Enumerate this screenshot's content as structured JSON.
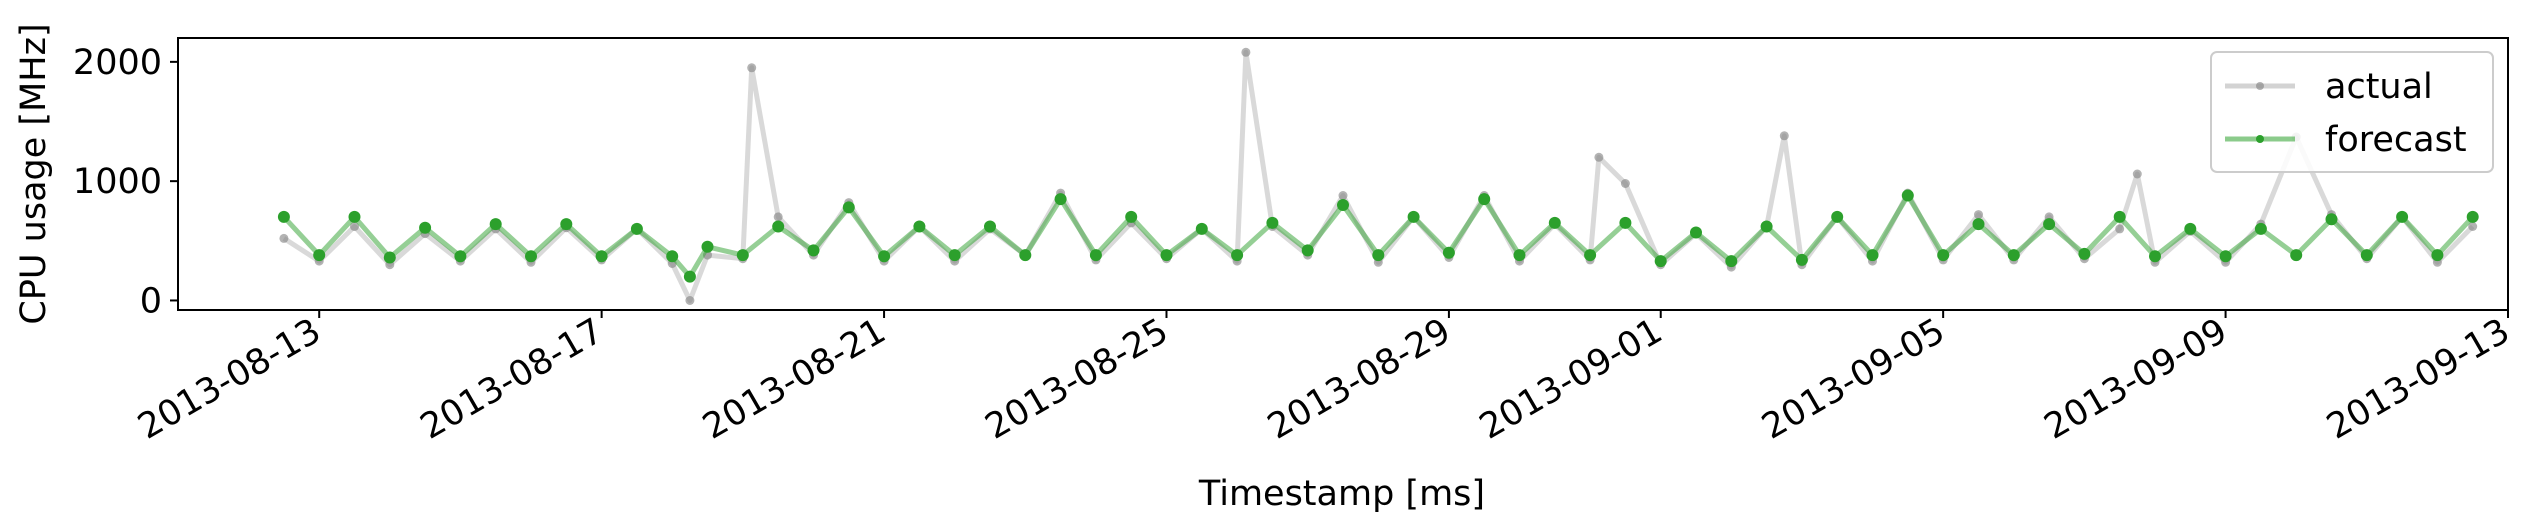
{
  "chart_data": {
    "type": "line",
    "title": "",
    "xlabel": "Timestamp [ms]",
    "ylabel": "CPU usage [MHz]",
    "xlim": [
      "2013-08-11",
      "2013-09-13"
    ],
    "ylim": [
      -80,
      2200
    ],
    "x_ticks": [
      "2013-08-13",
      "2013-08-17",
      "2013-08-21",
      "2013-08-25",
      "2013-08-29",
      "2013-09-01",
      "2013-09-05",
      "2013-09-09",
      "2013-09-13"
    ],
    "y_ticks": [
      0,
      1000,
      2000
    ],
    "legend": {
      "placement": "top-right",
      "entries": [
        "actual",
        "forecast"
      ]
    },
    "grid": false,
    "series": [
      {
        "name": "actual",
        "color": "#808080",
        "points": [
          [
            "2013-08-12 12:00",
            520
          ],
          [
            "2013-08-13 00:00",
            330
          ],
          [
            "2013-08-13 12:00",
            620
          ],
          [
            "2013-08-14 00:00",
            300
          ],
          [
            "2013-08-14 12:00",
            560
          ],
          [
            "2013-08-15 00:00",
            330
          ],
          [
            "2013-08-15 12:00",
            600
          ],
          [
            "2013-08-16 00:00",
            320
          ],
          [
            "2013-08-16 12:00",
            610
          ],
          [
            "2013-08-17 00:00",
            340
          ],
          [
            "2013-08-17 12:00",
            600
          ],
          [
            "2013-08-18 00:00",
            310
          ],
          [
            "2013-08-18 06:00",
            0
          ],
          [
            "2013-08-18 12:00",
            380
          ],
          [
            "2013-08-19 00:00",
            350
          ],
          [
            "2013-08-19 03:00",
            1950
          ],
          [
            "2013-08-19 12:00",
            700
          ],
          [
            "2013-08-20 00:00",
            380
          ],
          [
            "2013-08-20 12:00",
            820
          ],
          [
            "2013-08-21 00:00",
            330
          ],
          [
            "2013-08-21 12:00",
            620
          ],
          [
            "2013-08-22 00:00",
            330
          ],
          [
            "2013-08-22 12:00",
            600
          ],
          [
            "2013-08-23 00:00",
            380
          ],
          [
            "2013-08-23 12:00",
            900
          ],
          [
            "2013-08-24 00:00",
            340
          ],
          [
            "2013-08-24 12:00",
            650
          ],
          [
            "2013-08-25 00:00",
            350
          ],
          [
            "2013-08-25 12:00",
            600
          ],
          [
            "2013-08-26 00:00",
            330
          ],
          [
            "2013-08-26 03:00",
            2080
          ],
          [
            "2013-08-26 12:00",
            620
          ],
          [
            "2013-08-27 00:00",
            380
          ],
          [
            "2013-08-27 12:00",
            880
          ],
          [
            "2013-08-28 00:00",
            320
          ],
          [
            "2013-08-28 12:00",
            700
          ],
          [
            "2013-08-29 00:00",
            360
          ],
          [
            "2013-08-29 12:00",
            880
          ],
          [
            "2013-08-30 00:00",
            330
          ],
          [
            "2013-08-30 12:00",
            640
          ],
          [
            "2013-08-31 00:00",
            340
          ],
          [
            "2013-08-31 03:00",
            1200
          ],
          [
            "2013-08-31 12:00",
            980
          ],
          [
            "2013-09-01 00:00",
            300
          ],
          [
            "2013-09-01 12:00",
            560
          ],
          [
            "2013-09-02 00:00",
            280
          ],
          [
            "2013-09-02 12:00",
            620
          ],
          [
            "2013-09-02 18:00",
            1380
          ],
          [
            "2013-09-03 00:00",
            300
          ],
          [
            "2013-09-03 12:00",
            700
          ],
          [
            "2013-09-04 00:00",
            330
          ],
          [
            "2013-09-04 12:00",
            900
          ],
          [
            "2013-09-05 00:00",
            340
          ],
          [
            "2013-09-05 12:00",
            720
          ],
          [
            "2013-09-06 00:00",
            340
          ],
          [
            "2013-09-06 12:00",
            700
          ],
          [
            "2013-09-07 00:00",
            350
          ],
          [
            "2013-09-07 12:00",
            600
          ],
          [
            "2013-09-07 18:00",
            1060
          ],
          [
            "2013-09-08 00:00",
            320
          ],
          [
            "2013-09-08 12:00",
            580
          ],
          [
            "2013-09-09 00:00",
            320
          ],
          [
            "2013-09-09 12:00",
            640
          ],
          [
            "2013-09-10 00:00",
            1370
          ],
          [
            "2013-09-10 12:00",
            720
          ],
          [
            "2013-09-11 00:00",
            350
          ],
          [
            "2013-09-11 12:00",
            700
          ],
          [
            "2013-09-12 00:00",
            320
          ],
          [
            "2013-09-12 12:00",
            620
          ]
        ]
      },
      {
        "name": "forecast",
        "color": "#2ca02c",
        "points": [
          [
            "2013-08-12 12:00",
            700
          ],
          [
            "2013-08-13 00:00",
            380
          ],
          [
            "2013-08-13 12:00",
            700
          ],
          [
            "2013-08-14 00:00",
            360
          ],
          [
            "2013-08-14 12:00",
            610
          ],
          [
            "2013-08-15 00:00",
            370
          ],
          [
            "2013-08-15 12:00",
            640
          ],
          [
            "2013-08-16 00:00",
            370
          ],
          [
            "2013-08-16 12:00",
            640
          ],
          [
            "2013-08-17 00:00",
            370
          ],
          [
            "2013-08-17 12:00",
            600
          ],
          [
            "2013-08-18 00:00",
            370
          ],
          [
            "2013-08-18 06:00",
            200
          ],
          [
            "2013-08-18 12:00",
            450
          ],
          [
            "2013-08-19 00:00",
            380
          ],
          [
            "2013-08-19 12:00",
            620
          ],
          [
            "2013-08-20 00:00",
            420
          ],
          [
            "2013-08-20 12:00",
            780
          ],
          [
            "2013-08-21 00:00",
            370
          ],
          [
            "2013-08-21 12:00",
            620
          ],
          [
            "2013-08-22 00:00",
            380
          ],
          [
            "2013-08-22 12:00",
            620
          ],
          [
            "2013-08-23 00:00",
            380
          ],
          [
            "2013-08-23 12:00",
            850
          ],
          [
            "2013-08-24 00:00",
            380
          ],
          [
            "2013-08-24 12:00",
            700
          ],
          [
            "2013-08-25 00:00",
            380
          ],
          [
            "2013-08-25 12:00",
            600
          ],
          [
            "2013-08-26 00:00",
            380
          ],
          [
            "2013-08-26 12:00",
            650
          ],
          [
            "2013-08-27 00:00",
            420
          ],
          [
            "2013-08-27 12:00",
            800
          ],
          [
            "2013-08-28 00:00",
            380
          ],
          [
            "2013-08-28 12:00",
            700
          ],
          [
            "2013-08-29 00:00",
            400
          ],
          [
            "2013-08-29 12:00",
            850
          ],
          [
            "2013-08-30 00:00",
            380
          ],
          [
            "2013-08-30 12:00",
            650
          ],
          [
            "2013-08-31 00:00",
            380
          ],
          [
            "2013-08-31 12:00",
            650
          ],
          [
            "2013-09-01 00:00",
            330
          ],
          [
            "2013-09-01 12:00",
            570
          ],
          [
            "2013-09-02 00:00",
            330
          ],
          [
            "2013-09-02 12:00",
            620
          ],
          [
            "2013-09-03 00:00",
            340
          ],
          [
            "2013-09-03 12:00",
            700
          ],
          [
            "2013-09-04 00:00",
            380
          ],
          [
            "2013-09-04 12:00",
            880
          ],
          [
            "2013-09-05 00:00",
            380
          ],
          [
            "2013-09-05 12:00",
            640
          ],
          [
            "2013-09-06 00:00",
            380
          ],
          [
            "2013-09-06 12:00",
            640
          ],
          [
            "2013-09-07 00:00",
            390
          ],
          [
            "2013-09-07 12:00",
            700
          ],
          [
            "2013-09-08 00:00",
            370
          ],
          [
            "2013-09-08 12:00",
            600
          ],
          [
            "2013-09-09 00:00",
            370
          ],
          [
            "2013-09-09 12:00",
            600
          ],
          [
            "2013-09-10 00:00",
            380
          ],
          [
            "2013-09-10 12:00",
            680
          ],
          [
            "2013-09-11 00:00",
            380
          ],
          [
            "2013-09-11 12:00",
            700
          ],
          [
            "2013-09-12 00:00",
            380
          ],
          [
            "2013-09-12 12:00",
            700
          ]
        ]
      }
    ]
  }
}
